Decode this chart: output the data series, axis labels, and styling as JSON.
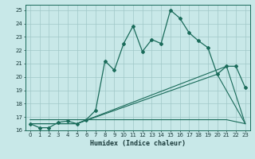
{
  "xlabel": "Humidex (Indice chaleur)",
  "background_color": "#c8e8e8",
  "grid_color": "#a0c8c8",
  "line_color": "#1a6b5a",
  "xlim": [
    -0.5,
    23.5
  ],
  "ylim": [
    16,
    25.4
  ],
  "xticks": [
    0,
    1,
    2,
    3,
    4,
    5,
    6,
    7,
    8,
    9,
    10,
    11,
    12,
    13,
    14,
    15,
    16,
    17,
    18,
    19,
    20,
    21,
    22,
    23
  ],
  "yticks": [
    16,
    17,
    18,
    19,
    20,
    21,
    22,
    23,
    24,
    25
  ],
  "main_line_x": [
    0,
    1,
    2,
    3,
    4,
    5,
    6,
    7,
    8,
    9,
    10,
    11,
    12,
    13,
    14,
    15,
    16,
    17,
    18,
    19,
    20,
    21,
    22,
    23
  ],
  "main_line_y": [
    16.5,
    16.2,
    16.2,
    16.6,
    16.7,
    16.5,
    16.8,
    17.5,
    21.2,
    20.5,
    22.5,
    23.8,
    21.9,
    22.8,
    22.5,
    25.0,
    24.4,
    23.3,
    22.7,
    22.2,
    20.2,
    20.8,
    20.8,
    19.2
  ],
  "line2_x": [
    0,
    5,
    21,
    23
  ],
  "line2_y": [
    16.5,
    16.5,
    20.8,
    16.5
  ],
  "line3_x": [
    0,
    5,
    20,
    23
  ],
  "line3_y": [
    16.5,
    16.5,
    20.2,
    16.5
  ],
  "line4_x": [
    0,
    21,
    23
  ],
  "line4_y": [
    16.8,
    16.8,
    16.5
  ]
}
